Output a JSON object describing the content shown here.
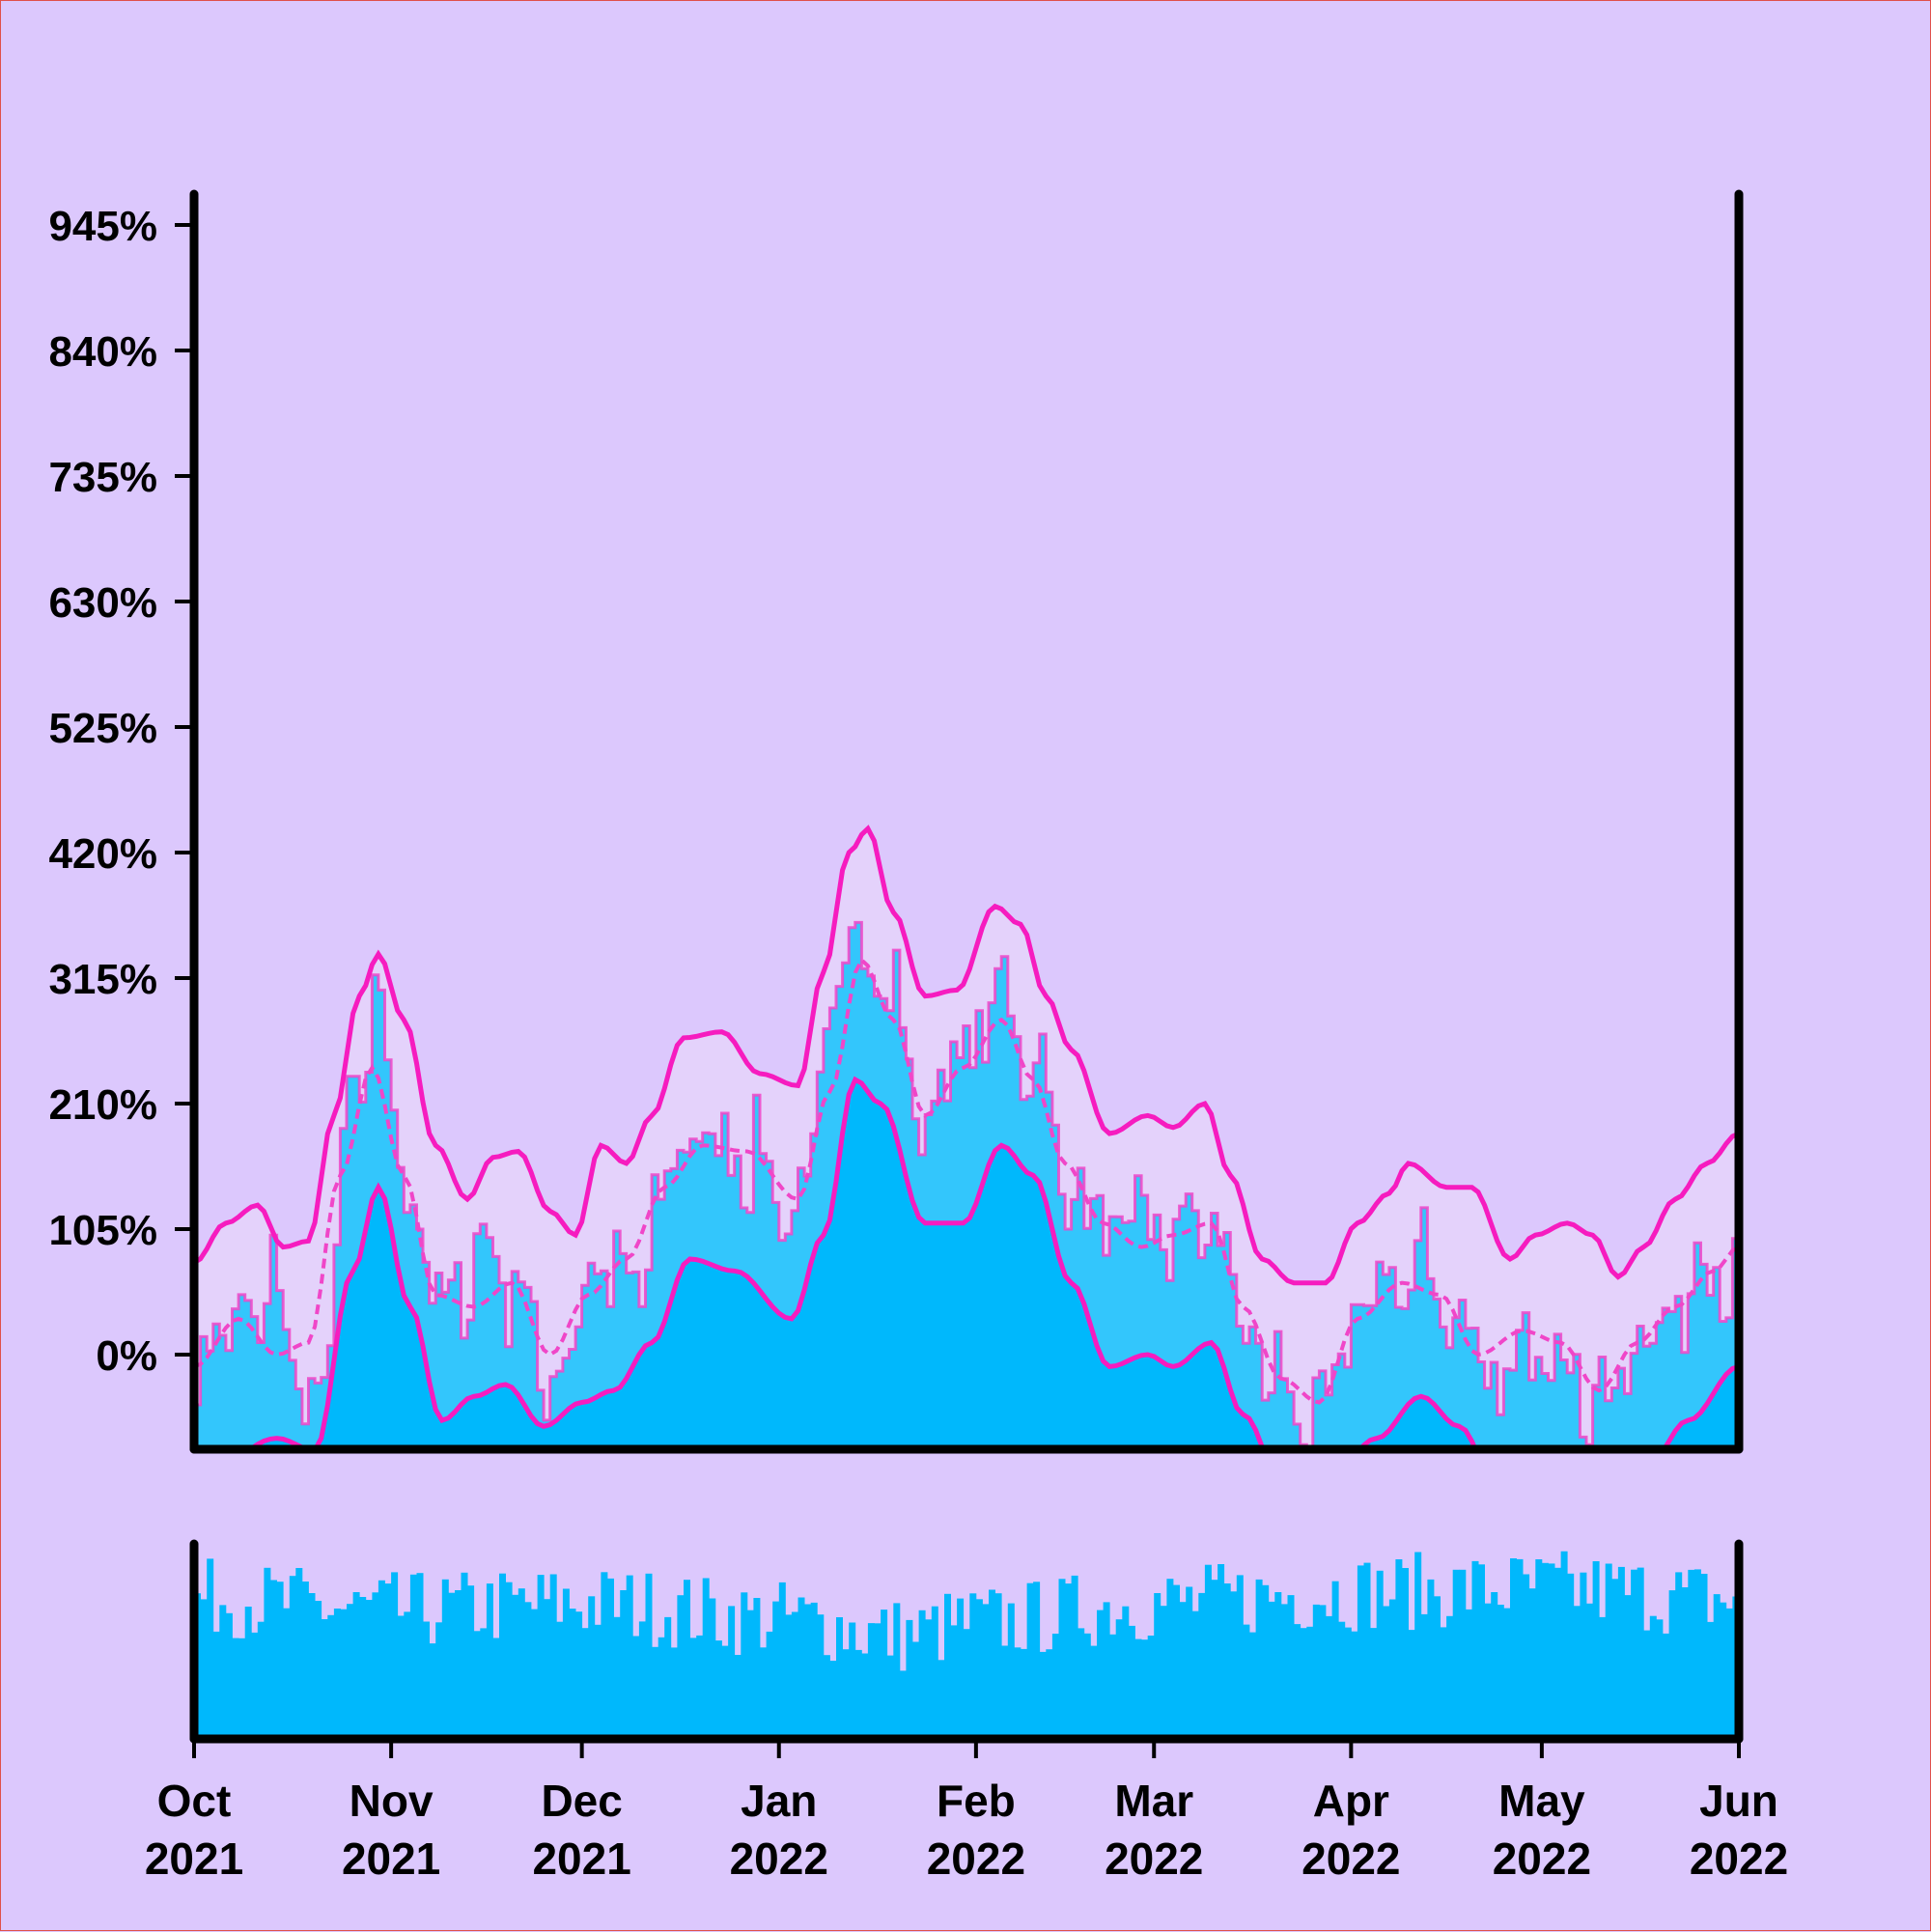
{
  "colors": {
    "background": "#dcc8fd",
    "band_fill": "#e4d2fb",
    "series_fill": "#33c6fc",
    "trend_fill": "#00b8fc",
    "magenta": "#f61cbf",
    "magenta_light": "#f046c8",
    "axis": "#000000"
  },
  "chart_data": {
    "type": "area",
    "title": "",
    "xlabel": "",
    "ylabel": "",
    "x_range": [
      "2021-10-01",
      "2022-06-01"
    ],
    "ylim": [
      -70,
      945
    ],
    "y_ticks": [
      0,
      105,
      210,
      315,
      420,
      525,
      630,
      735,
      840,
      945
    ],
    "y_tick_labels": [
      "0%",
      "105%",
      "210%",
      "315%",
      "420%",
      "525%",
      "630%",
      "735%",
      "840%",
      "945%"
    ],
    "x_ticks": [
      {
        "date": "2021-10-01",
        "label": [
          "Oct",
          "2021"
        ]
      },
      {
        "date": "2021-11-01",
        "label": [
          "Nov",
          "2021"
        ]
      },
      {
        "date": "2021-12-01",
        "label": [
          "Dec",
          "2021"
        ]
      },
      {
        "date": "2022-01-01",
        "label": [
          "Jan",
          "2022"
        ]
      },
      {
        "date": "2022-02-01",
        "label": [
          "Feb",
          "2022"
        ]
      },
      {
        "date": "2022-03-01",
        "label": [
          "Mar",
          "2022"
        ]
      },
      {
        "date": "2022-04-01",
        "label": [
          "Apr",
          "2022"
        ]
      },
      {
        "date": "2022-05-01",
        "label": [
          "May",
          "2022"
        ]
      },
      {
        "date": "2022-06-01",
        "label": [
          "Jun",
          "2022"
        ]
      }
    ],
    "series_keypoints": [
      [
        "2021-10-01",
        -35
      ],
      [
        "2021-10-05",
        40
      ],
      [
        "2021-10-10",
        10
      ],
      [
        "2021-10-13",
        80
      ],
      [
        "2021-10-17",
        -40
      ],
      [
        "2021-10-21",
        -20
      ],
      [
        "2021-10-25",
        200
      ],
      [
        "2021-10-29",
        280
      ],
      [
        "2021-11-03",
        150
      ],
      [
        "2021-11-08",
        40
      ],
      [
        "2021-11-12",
        60
      ],
      [
        "2021-11-16",
        90
      ],
      [
        "2021-11-20",
        60
      ],
      [
        "2021-11-25",
        -20
      ],
      [
        "2021-11-29",
        10
      ],
      [
        "2021-12-03",
        80
      ],
      [
        "2021-12-08",
        50
      ],
      [
        "2021-12-13",
        120
      ],
      [
        "2021-12-17",
        190
      ],
      [
        "2021-12-22",
        170
      ],
      [
        "2021-12-27",
        170
      ],
      [
        "2022-01-01",
        130
      ],
      [
        "2022-01-05",
        120
      ],
      [
        "2022-01-08",
        260
      ],
      [
        "2022-01-12",
        380
      ],
      [
        "2022-01-15",
        310
      ],
      [
        "2022-01-18",
        320
      ],
      [
        "2022-01-22",
        200
      ],
      [
        "2022-01-27",
        230
      ],
      [
        "2022-02-01",
        270
      ],
      [
        "2022-02-05",
        300
      ],
      [
        "2022-02-10",
        240
      ],
      [
        "2022-02-14",
        160
      ],
      [
        "2022-02-18",
        120
      ],
      [
        "2022-02-22",
        100
      ],
      [
        "2022-02-27",
        110
      ],
      [
        "2022-03-03",
        100
      ],
      [
        "2022-03-08",
        110
      ],
      [
        "2022-03-12",
        90
      ],
      [
        "2022-03-15",
        10
      ],
      [
        "2022-03-19",
        -30
      ],
      [
        "2022-03-23",
        -40
      ],
      [
        "2022-03-27",
        -60
      ],
      [
        "2022-03-30",
        20
      ],
      [
        "2022-04-03",
        40
      ],
      [
        "2022-04-08",
        70
      ],
      [
        "2022-04-12",
        80
      ],
      [
        "2022-04-16",
        40
      ],
      [
        "2022-04-19",
        0
      ],
      [
        "2022-04-23",
        -30
      ],
      [
        "2022-04-27",
        -10
      ],
      [
        "2022-05-01",
        30
      ],
      [
        "2022-05-05",
        -20
      ],
      [
        "2022-05-09",
        -30
      ],
      [
        "2022-05-13",
        -30
      ],
      [
        "2022-05-17",
        20
      ],
      [
        "2022-05-21",
        30
      ],
      [
        "2022-05-25",
        60
      ],
      [
        "2022-05-29",
        70
      ],
      [
        "2022-06-01",
        100
      ]
    ],
    "upper_band": [
      [
        "2021-10-01",
        77
      ],
      [
        "2021-10-06",
        110
      ],
      [
        "2021-10-11",
        125
      ],
      [
        "2021-10-15",
        90
      ],
      [
        "2021-10-19",
        95
      ],
      [
        "2021-10-23",
        200
      ],
      [
        "2021-10-27",
        300
      ],
      [
        "2021-10-30",
        335
      ],
      [
        "2021-11-03",
        280
      ],
      [
        "2021-11-08",
        175
      ],
      [
        "2021-11-13",
        130
      ],
      [
        "2021-11-17",
        165
      ],
      [
        "2021-11-21",
        170
      ],
      [
        "2021-11-26",
        120
      ],
      [
        "2021-11-30",
        100
      ],
      [
        "2021-12-04",
        175
      ],
      [
        "2021-12-08",
        160
      ],
      [
        "2021-12-12",
        200
      ],
      [
        "2021-12-17",
        265
      ],
      [
        "2021-12-23",
        270
      ],
      [
        "2021-12-29",
        235
      ],
      [
        "2022-01-04",
        225
      ],
      [
        "2022-01-08",
        320
      ],
      [
        "2022-01-12",
        420
      ],
      [
        "2022-01-15",
        440
      ],
      [
        "2022-01-19",
        370
      ],
      [
        "2022-01-24",
        300
      ],
      [
        "2022-01-29",
        305
      ],
      [
        "2022-02-04",
        375
      ],
      [
        "2022-02-08",
        360
      ],
      [
        "2022-02-12",
        300
      ],
      [
        "2022-02-16",
        255
      ],
      [
        "2022-02-22",
        185
      ],
      [
        "2022-02-28",
        200
      ],
      [
        "2022-03-04",
        190
      ],
      [
        "2022-03-09",
        210
      ],
      [
        "2022-03-13",
        150
      ],
      [
        "2022-03-18",
        80
      ],
      [
        "2022-03-23",
        60
      ],
      [
        "2022-03-28",
        60
      ],
      [
        "2022-04-02",
        110
      ],
      [
        "2022-04-07",
        135
      ],
      [
        "2022-04-10",
        160
      ],
      [
        "2022-04-16",
        140
      ],
      [
        "2022-04-20",
        140
      ],
      [
        "2022-04-26",
        80
      ],
      [
        "2022-04-30",
        100
      ],
      [
        "2022-05-05",
        110
      ],
      [
        "2022-05-09",
        100
      ],
      [
        "2022-05-13",
        65
      ],
      [
        "2022-05-17",
        90
      ],
      [
        "2022-05-22",
        130
      ],
      [
        "2022-05-27",
        160
      ],
      [
        "2022-06-01",
        185
      ]
    ],
    "moving_average": [
      [
        "2021-10-01",
        -10
      ],
      [
        "2021-10-08",
        30
      ],
      [
        "2021-10-14",
        0
      ],
      [
        "2021-10-19",
        10
      ],
      [
        "2021-10-24",
        150
      ],
      [
        "2021-10-29",
        240
      ],
      [
        "2021-11-03",
        150
      ],
      [
        "2021-11-08",
        50
      ],
      [
        "2021-11-14",
        40
      ],
      [
        "2021-11-20",
        60
      ],
      [
        "2021-11-26",
        0
      ],
      [
        "2021-12-02",
        50
      ],
      [
        "2021-12-08",
        80
      ],
      [
        "2021-12-14",
        140
      ],
      [
        "2021-12-20",
        175
      ],
      [
        "2021-12-27",
        170
      ],
      [
        "2022-01-04",
        130
      ],
      [
        "2022-01-09",
        220
      ],
      [
        "2022-01-14",
        330
      ],
      [
        "2022-01-19",
        280
      ],
      [
        "2022-01-24",
        200
      ],
      [
        "2022-01-30",
        240
      ],
      [
        "2022-02-05",
        280
      ],
      [
        "2022-02-10",
        230
      ],
      [
        "2022-02-15",
        160
      ],
      [
        "2022-02-21",
        110
      ],
      [
        "2022-02-27",
        90
      ],
      [
        "2022-03-04",
        100
      ],
      [
        "2022-03-10",
        110
      ],
      [
        "2022-03-15",
        40
      ],
      [
        "2022-03-21",
        -20
      ],
      [
        "2022-03-27",
        -40
      ],
      [
        "2022-04-02",
        30
      ],
      [
        "2022-04-09",
        60
      ],
      [
        "2022-04-15",
        50
      ],
      [
        "2022-04-21",
        0
      ],
      [
        "2022-04-28",
        20
      ],
      [
        "2022-05-04",
        10
      ],
      [
        "2022-05-10",
        -30
      ],
      [
        "2022-05-16",
        10
      ],
      [
        "2022-05-22",
        40
      ],
      [
        "2022-05-28",
        70
      ],
      [
        "2022-06-01",
        90
      ]
    ],
    "trend_line": [
      [
        "2021-10-01",
        -110
      ],
      [
        "2021-10-14",
        -70
      ],
      [
        "2021-10-20",
        -80
      ],
      [
        "2021-10-26",
        70
      ],
      [
        "2021-10-30",
        140
      ],
      [
        "2021-11-04",
        40
      ],
      [
        "2021-11-09",
        -55
      ],
      [
        "2021-11-14",
        -35
      ],
      [
        "2021-11-19",
        -25
      ],
      [
        "2021-11-25",
        -60
      ],
      [
        "2021-12-01",
        -40
      ],
      [
        "2021-12-06",
        -30
      ],
      [
        "2021-12-12",
        10
      ],
      [
        "2021-12-18",
        80
      ],
      [
        "2021-12-25",
        70
      ],
      [
        "2022-01-03",
        30
      ],
      [
        "2022-01-08",
        100
      ],
      [
        "2022-01-13",
        230
      ],
      [
        "2022-01-17",
        210
      ],
      [
        "2022-01-24",
        110
      ],
      [
        "2022-01-30",
        110
      ],
      [
        "2022-02-05",
        175
      ],
      [
        "2022-02-10",
        150
      ],
      [
        "2022-02-16",
        60
      ],
      [
        "2022-02-22",
        -10
      ],
      [
        "2022-02-28",
        0
      ],
      [
        "2022-03-04",
        -10
      ],
      [
        "2022-03-10",
        10
      ],
      [
        "2022-03-15",
        -50
      ],
      [
        "2022-03-22",
        -120
      ],
      [
        "2022-03-28",
        -110
      ],
      [
        "2022-04-05",
        -70
      ],
      [
        "2022-04-12",
        -35
      ],
      [
        "2022-04-18",
        -60
      ],
      [
        "2022-04-24",
        -110
      ],
      [
        "2022-05-02",
        -120
      ],
      [
        "2022-05-10",
        -110
      ],
      [
        "2022-05-18",
        -90
      ],
      [
        "2022-05-24",
        -55
      ],
      [
        "2022-06-01",
        -10
      ]
    ],
    "volume": {
      "type": "bar",
      "ylim": [
        0,
        1
      ],
      "level_keypoints": [
        [
          "2021-10-01",
          0.75
        ],
        [
          "2021-11-01",
          0.68
        ],
        [
          "2021-12-01",
          0.72
        ],
        [
          "2022-01-01",
          0.64
        ],
        [
          "2022-01-20",
          0.55
        ],
        [
          "2022-02-01",
          0.62
        ],
        [
          "2022-03-01",
          0.72
        ],
        [
          "2022-04-01",
          0.78
        ],
        [
          "2022-05-01",
          0.8
        ],
        [
          "2022-06-01",
          0.74
        ]
      ]
    }
  }
}
